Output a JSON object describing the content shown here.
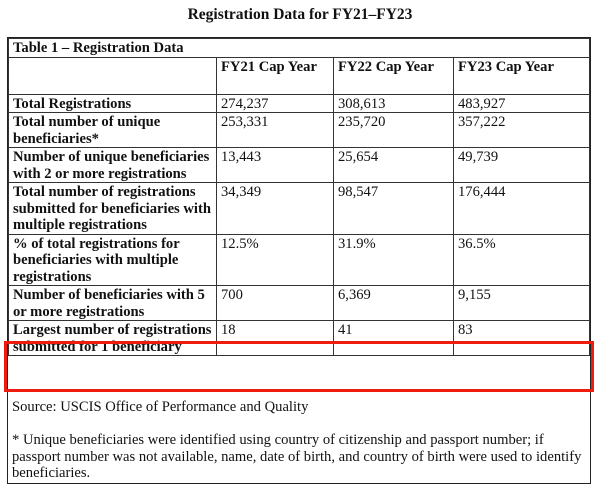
{
  "title": "Registration Data for FY21–FY23",
  "table": {
    "caption": "Table 1 – Registration Data",
    "headers": [
      "",
      "FY21 Cap Year",
      "FY22 Cap Year",
      "FY23 Cap Year"
    ],
    "rows": [
      {
        "label": "Total Registrations",
        "values": [
          "274,237",
          "308,613",
          "483,927"
        ]
      },
      {
        "label": "Total number of unique beneficiaries*",
        "values": [
          "253,331",
          "235,720",
          "357,222"
        ]
      },
      {
        "label": "Number of unique beneficiaries with 2 or more registrations",
        "values": [
          "13,443",
          "25,654",
          "49,739"
        ]
      },
      {
        "label": "Total number of registrations submitted for beneficiaries with multiple registrations",
        "values": [
          "34,349",
          "98,547",
          "176,444"
        ]
      },
      {
        "label": "% of total registrations for beneficiaries with multiple registrations",
        "values": [
          "12.5%",
          "31.9%",
          "36.5%"
        ]
      },
      {
        "label": "Number of beneficiaries with 5 or more registrations",
        "values": [
          "700",
          "6,369",
          "9,155"
        ]
      },
      {
        "label": "Largest number of registrations submitted for 1 beneficiary",
        "values": [
          "18",
          "41",
          "83"
        ]
      }
    ]
  },
  "source": "Source: USCIS Office of Performance and Quality",
  "footnote": "* Unique beneficiaries were identified using country of citizenship and passport number; if passport number was not available, name, date of birth, and country of birth were used to identify beneficiaries.",
  "colors": {
    "highlight": "#ee1c0e"
  }
}
